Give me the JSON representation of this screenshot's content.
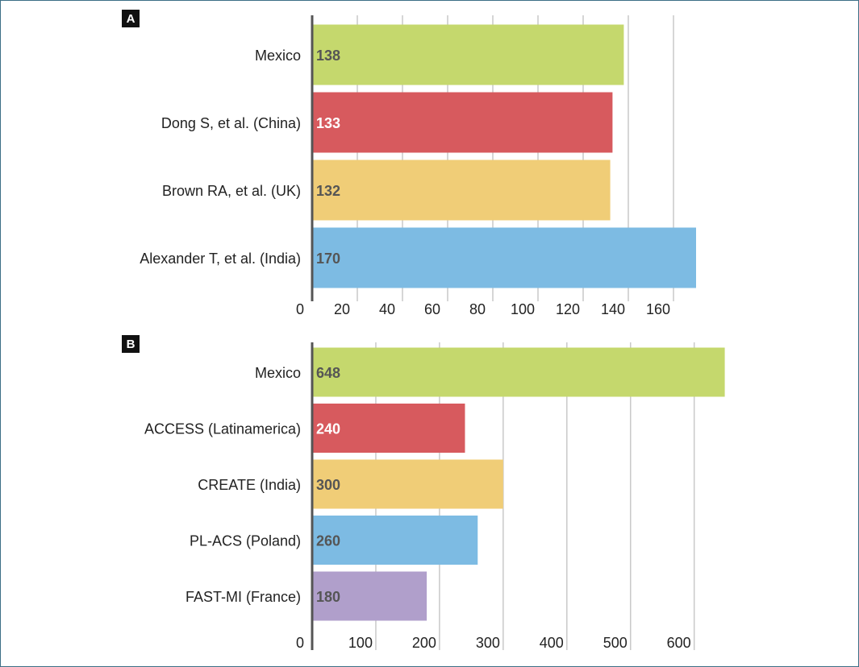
{
  "panels": {
    "a": {
      "tag": "A"
    },
    "b": {
      "tag": "B"
    }
  },
  "chart_data": [
    {
      "type": "bar",
      "orientation": "horizontal",
      "panel": "A",
      "categories": [
        "Mexico",
        "Dong S, et al. (China)",
        "Brown RA, et al. (UK)",
        "Alexander T, et al. (India)"
      ],
      "values": [
        138,
        133,
        132,
        170
      ],
      "data_labels": [
        "138",
        "133",
        "132",
        "170"
      ],
      "colors": [
        "#c5d86d",
        "#d75a5e",
        "#f0cd77",
        "#7dbbe3"
      ],
      "label_colors": [
        "#555555",
        "#ffffff",
        "#555555",
        "#555555"
      ],
      "xticks": [
        0,
        20,
        40,
        60,
        80,
        100,
        120,
        140,
        160
      ],
      "xtick_labels": [
        "0",
        "20",
        "40",
        "60",
        "80",
        "100",
        "120",
        "140",
        "160"
      ],
      "xlim": [
        0,
        175
      ],
      "grid": "vertical",
      "title": "",
      "xlabel": "",
      "ylabel": ""
    },
    {
      "type": "bar",
      "orientation": "horizontal",
      "panel": "B",
      "categories": [
        "Mexico",
        "ACCESS (Latinamerica)",
        "CREATE (India)",
        "PL-ACS (Poland)",
        "FAST-MI (France)"
      ],
      "values": [
        648,
        240,
        300,
        260,
        180
      ],
      "data_labels": [
        "648",
        "240",
        "300",
        "260",
        "180"
      ],
      "colors": [
        "#c5d86d",
        "#d75a5e",
        "#f0cd77",
        "#7dbbe3",
        "#b09fcb"
      ],
      "label_colors": [
        "#555555",
        "#ffffff",
        "#555555",
        "#555555",
        "#555555"
      ],
      "xticks": [
        0,
        100,
        200,
        300,
        400,
        500,
        600
      ],
      "xtick_labels": [
        "0",
        "100",
        "200",
        "300",
        "400",
        "500",
        "600"
      ],
      "xlim": [
        0,
        665
      ],
      "grid": "vertical",
      "title": "",
      "xlabel": "",
      "ylabel": ""
    }
  ]
}
